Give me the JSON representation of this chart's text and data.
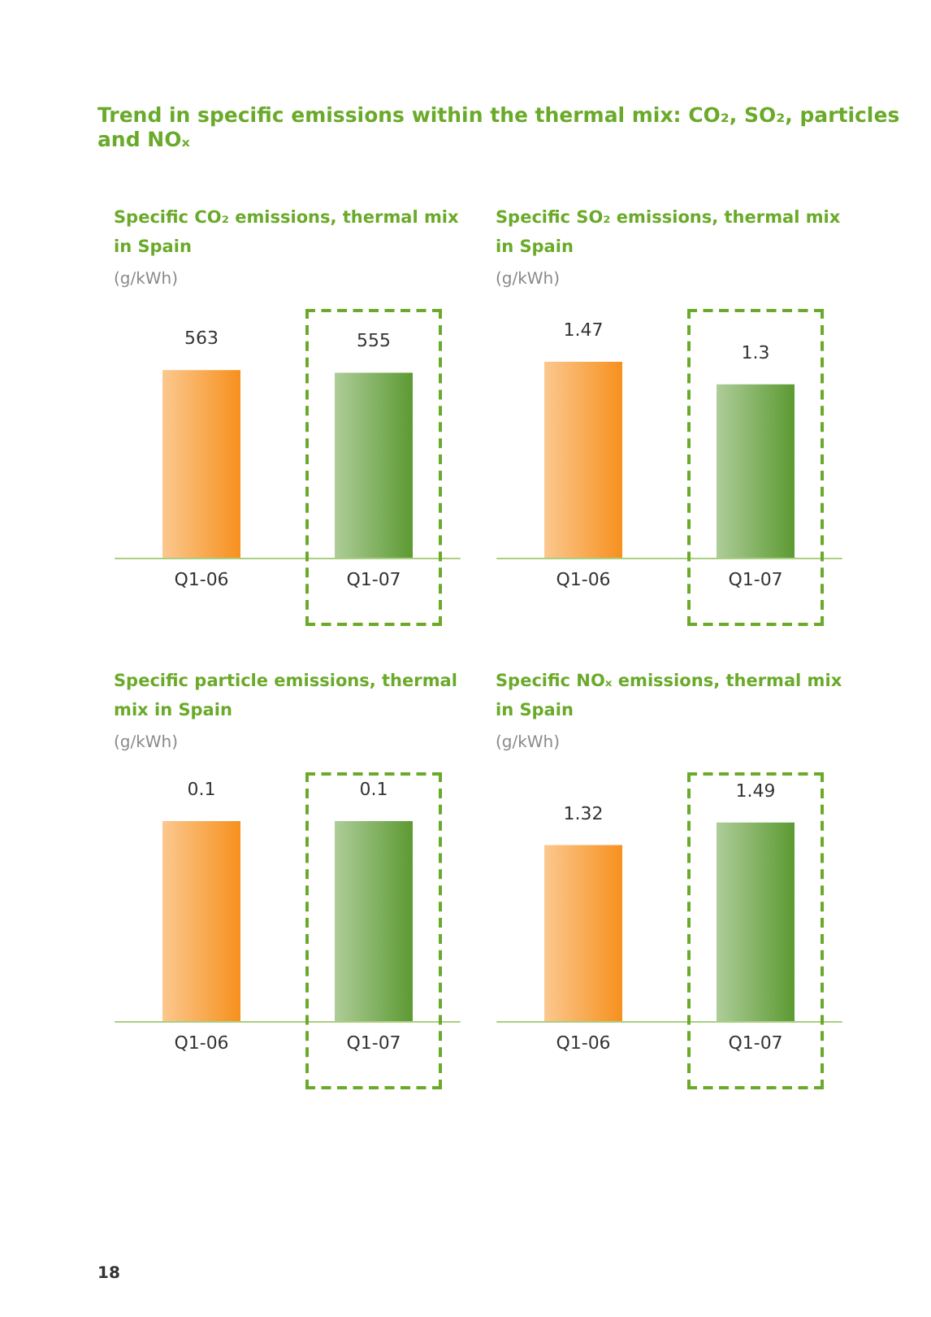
{
  "chart_data": [
    {
      "type": "other",
      "title": "Trend in specific emissions within the thermal mix:  CO₂, SO₂, particles and  NOₓ",
      "annotations": [
        "18"
      ]
    },
    {
      "type": "bar",
      "title": "Specific CO₂ emissions, thermal mix in Spain",
      "subtitle": "(g/kWh)",
      "categories": [
        "Q1-06",
        "Q1-07"
      ],
      "values": [
        563,
        555
      ],
      "colors": [
        "#f7901e",
        "#5c9a32"
      ],
      "data_labels": true,
      "grid": false
    },
    {
      "type": "bar",
      "title": "Specific SO₂ emissions, thermal mix in Spain",
      "subtitle": "(g/kWh)",
      "categories": [
        "Q1-06",
        "Q1-07"
      ],
      "values": [
        1.47,
        1.3
      ],
      "colors": [
        "#f7901e",
        "#5c9a32"
      ],
      "data_labels": true,
      "grid": false
    },
    {
      "type": "bar",
      "title": "Specific particle emissions, thermal mix in Spain",
      "subtitle": "(g/kWh)",
      "categories": [
        "Q1-06",
        "Q1-07"
      ],
      "values": [
        0.1,
        0.1
      ],
      "colors": [
        "#f7901e",
        "#5c9a32"
      ],
      "data_labels": true,
      "grid": false
    },
    {
      "type": "bar",
      "title": "Specific NOₓ emissions, thermal mix in Spain",
      "subtitle": "(g/kWh)",
      "categories": [
        "Q1-06",
        "Q1-07"
      ],
      "values": [
        1.32,
        1.49
      ],
      "colors": [
        "#f7901e",
        "#5c9a32"
      ],
      "data_labels": true,
      "grid": false
    }
  ]
}
